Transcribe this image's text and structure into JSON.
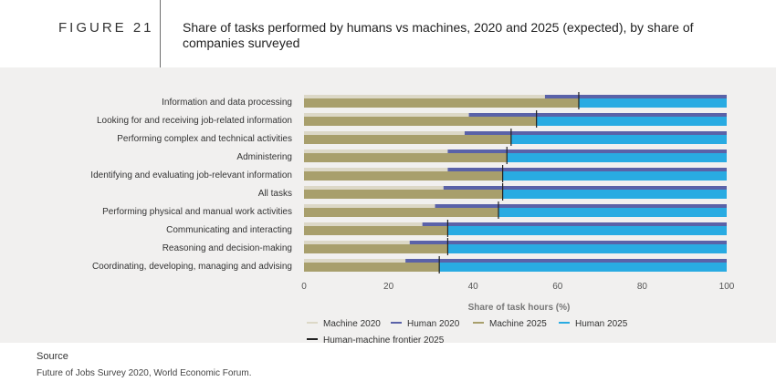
{
  "figure_label": "FIGURE 21",
  "source": {
    "label": "Source",
    "text": "Future of Jobs Survey 2020, World Economic Forum."
  },
  "colors": {
    "machine_2020": "#dcd8c7",
    "human_2020": "#5a62a8",
    "machine_2025": "#a89f6c",
    "human_2025": "#29abe2",
    "frontier": "#222222",
    "panel": "#f1f0ef"
  },
  "chart_data": {
    "type": "bar",
    "title": "Share of tasks performed by humans vs machines, 2020 and 2025 (expected), by share of companies surveyed",
    "xlabel": "Share of task hours (%)",
    "ylabel": "",
    "xlim": [
      0,
      100
    ],
    "xticks": [
      "0",
      "20",
      "40",
      "60",
      "80",
      "100"
    ],
    "categories": [
      "Information and data processing",
      "Looking for and receiving job-related information",
      "Performing complex and technical activities",
      "Administering",
      "Identifying and evaluating job-relevant information",
      "All tasks",
      "Performing physical and manual work activities",
      "Communicating and interacting",
      "Reasoning and decision-making",
      "Coordinating, developing, managing and advising"
    ],
    "series": [
      {
        "name": "Machine 2020",
        "values": [
          57,
          39,
          38,
          34,
          34,
          33,
          31,
          28,
          25,
          24
        ]
      },
      {
        "name": "Human 2020",
        "values": [
          43,
          61,
          62,
          66,
          66,
          67,
          69,
          72,
          75,
          76
        ]
      },
      {
        "name": "Machine 2025",
        "values": [
          65,
          55,
          49,
          48,
          47,
          47,
          46,
          34,
          34,
          32
        ]
      },
      {
        "name": "Human 2025",
        "values": [
          35,
          45,
          51,
          52,
          53,
          53,
          54,
          66,
          66,
          68
        ]
      }
    ],
    "frontier": {
      "name": "Human-machine frontier 2025",
      "values": [
        65,
        55,
        49,
        48,
        47,
        47,
        46,
        34,
        34,
        32
      ]
    },
    "legend": [
      "Machine 2020",
      "Human 2020",
      "Machine 2025",
      "Human 2025",
      "Human-machine frontier 2025"
    ],
    "legend_position": "bottom"
  }
}
